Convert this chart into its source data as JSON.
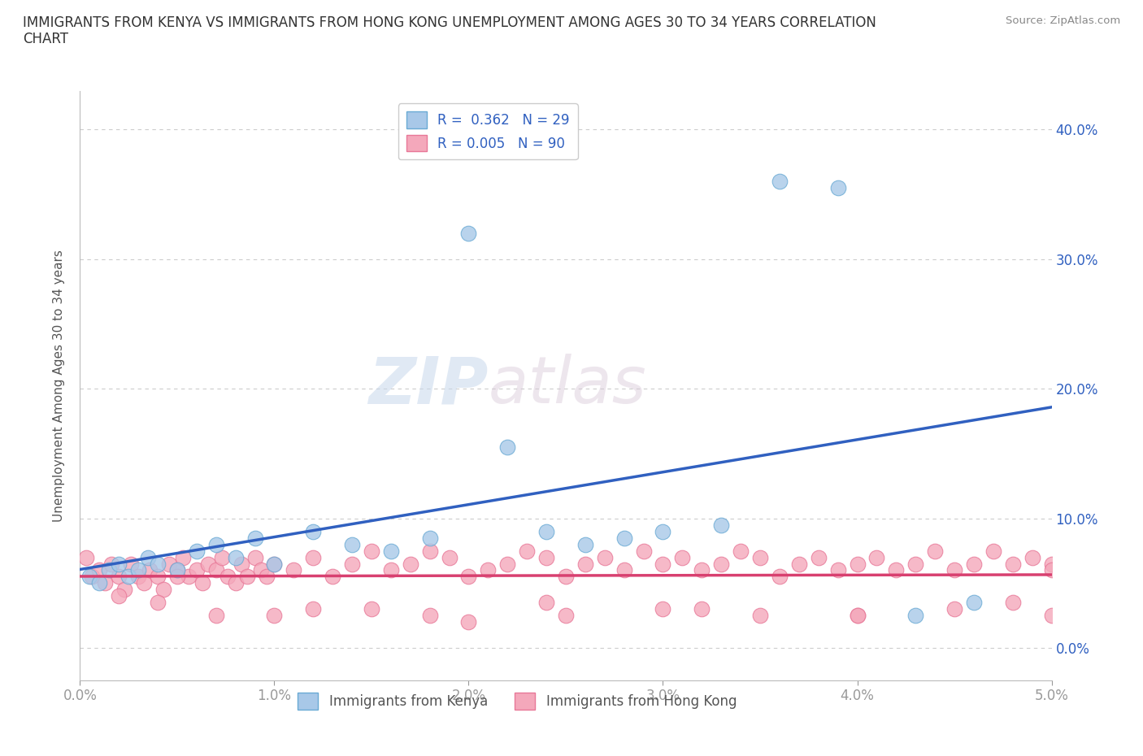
{
  "title": "IMMIGRANTS FROM KENYA VS IMMIGRANTS FROM HONG KONG UNEMPLOYMENT AMONG AGES 30 TO 34 YEARS CORRELATION\nCHART",
  "source_text": "Source: ZipAtlas.com",
  "ylabel": "Unemployment Among Ages 30 to 34 years",
  "xlim": [
    0.0,
    0.05
  ],
  "ylim": [
    -0.025,
    0.43
  ],
  "xticks": [
    0.0,
    0.01,
    0.02,
    0.03,
    0.04,
    0.05
  ],
  "yticks": [
    0.0,
    0.1,
    0.2,
    0.3,
    0.4
  ],
  "kenya_color": "#a8c8e8",
  "hk_color": "#f4a8bb",
  "kenya_edge": "#6aaad4",
  "hk_edge": "#e87898",
  "line_kenya_color": "#3060c0",
  "line_hk_color": "#d84070",
  "watermark_ZIP": "ZIP",
  "watermark_atlas": "atlas",
  "legend_line1": "R =  0.362   N = 29",
  "legend_line2": "R = 0.005   N = 90",
  "kenya_x": [
    0.0005,
    0.001,
    0.0015,
    0.002,
    0.0025,
    0.003,
    0.0035,
    0.004,
    0.005,
    0.006,
    0.007,
    0.008,
    0.009,
    0.01,
    0.012,
    0.014,
    0.016,
    0.018,
    0.02,
    0.022,
    0.024,
    0.026,
    0.028,
    0.03,
    0.033,
    0.036,
    0.039,
    0.043,
    0.046
  ],
  "kenya_y": [
    0.055,
    0.05,
    0.06,
    0.065,
    0.055,
    0.06,
    0.07,
    0.065,
    0.06,
    0.075,
    0.08,
    0.07,
    0.085,
    0.065,
    0.09,
    0.08,
    0.075,
    0.085,
    0.32,
    0.155,
    0.09,
    0.08,
    0.085,
    0.09,
    0.095,
    0.36,
    0.355,
    0.025,
    0.035
  ],
  "hk_x": [
    0.0003,
    0.0006,
    0.001,
    0.0013,
    0.0016,
    0.002,
    0.0023,
    0.0026,
    0.003,
    0.0033,
    0.0036,
    0.004,
    0.0043,
    0.0046,
    0.005,
    0.0053,
    0.0056,
    0.006,
    0.0063,
    0.0066,
    0.007,
    0.0073,
    0.0076,
    0.008,
    0.0083,
    0.0086,
    0.009,
    0.0093,
    0.0096,
    0.01,
    0.011,
    0.012,
    0.013,
    0.014,
    0.015,
    0.016,
    0.017,
    0.018,
    0.019,
    0.02,
    0.021,
    0.022,
    0.023,
    0.024,
    0.025,
    0.026,
    0.027,
    0.028,
    0.029,
    0.03,
    0.031,
    0.032,
    0.033,
    0.034,
    0.035,
    0.036,
    0.037,
    0.038,
    0.039,
    0.04,
    0.041,
    0.042,
    0.043,
    0.044,
    0.045,
    0.046,
    0.047,
    0.048,
    0.049,
    0.05,
    0.005,
    0.01,
    0.015,
    0.02,
    0.025,
    0.03,
    0.035,
    0.04,
    0.045,
    0.05,
    0.002,
    0.004,
    0.007,
    0.012,
    0.018,
    0.024,
    0.032,
    0.04,
    0.048,
    0.05
  ],
  "hk_y": [
    0.07,
    0.055,
    0.06,
    0.05,
    0.065,
    0.055,
    0.045,
    0.065,
    0.055,
    0.05,
    0.06,
    0.055,
    0.045,
    0.065,
    0.06,
    0.07,
    0.055,
    0.06,
    0.05,
    0.065,
    0.06,
    0.07,
    0.055,
    0.05,
    0.065,
    0.055,
    0.07,
    0.06,
    0.055,
    0.065,
    0.06,
    0.07,
    0.055,
    0.065,
    0.075,
    0.06,
    0.065,
    0.075,
    0.07,
    0.055,
    0.06,
    0.065,
    0.075,
    0.07,
    0.055,
    0.065,
    0.07,
    0.06,
    0.075,
    0.065,
    0.07,
    0.06,
    0.065,
    0.075,
    0.07,
    0.055,
    0.065,
    0.07,
    0.06,
    0.065,
    0.07,
    0.06,
    0.065,
    0.075,
    0.06,
    0.065,
    0.075,
    0.065,
    0.07,
    0.065,
    0.055,
    0.025,
    0.03,
    0.02,
    0.025,
    0.03,
    0.025,
    0.025,
    0.03,
    0.025,
    0.04,
    0.035,
    0.025,
    0.03,
    0.025,
    0.035,
    0.03,
    0.025,
    0.035,
    0.06
  ]
}
